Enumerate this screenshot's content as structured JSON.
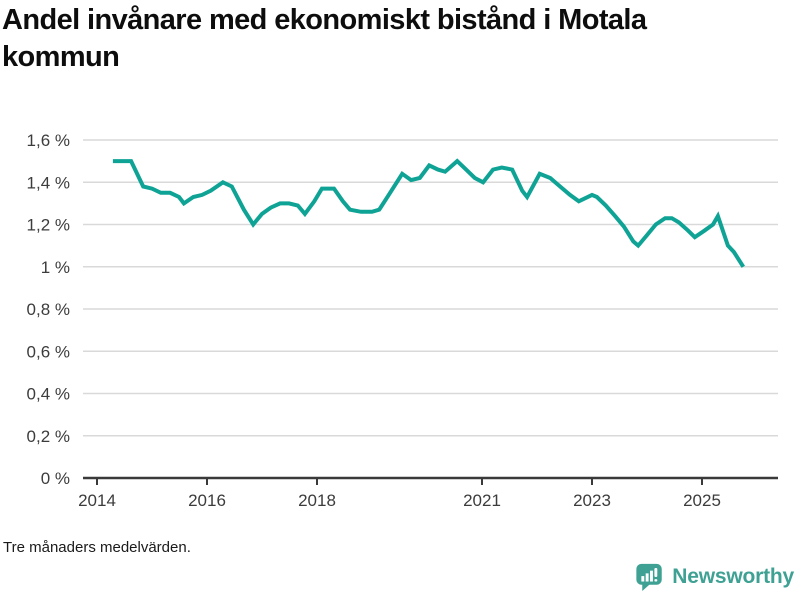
{
  "title": "Andel invånare med ekonomiskt bistånd i Motala kommun",
  "footnote": "Tre månaders medelvärden.",
  "logo": {
    "text": "Newsworthy",
    "color": "#3fa193",
    "icon": "speech-bubble-with-bar-chart-and-exclamation"
  },
  "chart_data": {
    "type": "line",
    "title": "Andel invånare med ekonomiskt bistånd i Motala kommun",
    "xlabel": "",
    "ylabel": "",
    "unit": "%",
    "grid": true,
    "legend_position": "none",
    "line_color": "#0fa396",
    "grid_color": "#d9d9d9",
    "axis_color": "#3a3a3a",
    "label_color": "#3c3c3c",
    "ylim": [
      0,
      1.6
    ],
    "xlim": [
      2013.75,
      2026.38
    ],
    "y_ticks": [
      {
        "value": 1.6,
        "label": "1,6 %"
      },
      {
        "value": 1.4,
        "label": "1,4 %"
      },
      {
        "value": 1.2,
        "label": "1,2 %"
      },
      {
        "value": 1.0,
        "label": "1 %"
      },
      {
        "value": 0.8,
        "label": "0,8 %"
      },
      {
        "value": 0.6,
        "label": "0,6 %"
      },
      {
        "value": 0.4,
        "label": "0,4 %"
      },
      {
        "value": 0.2,
        "label": "0,2 %"
      },
      {
        "value": 0.0,
        "label": "0 %"
      }
    ],
    "x_ticks": [
      {
        "year": 2014,
        "label": "2014"
      },
      {
        "year": 2016,
        "label": "2016"
      },
      {
        "year": 2018,
        "label": "2018"
      },
      {
        "year": 2021,
        "label": "2021"
      },
      {
        "year": 2023,
        "label": "2023"
      },
      {
        "year": 2025,
        "label": "2025"
      }
    ],
    "points_format": "[decimal_year, percent]",
    "points": [
      [
        2014.29,
        1.5
      ],
      [
        2014.45,
        1.5
      ],
      [
        2014.62,
        1.5
      ],
      [
        2014.84,
        1.38
      ],
      [
        2015.0,
        1.37
      ],
      [
        2015.16,
        1.35
      ],
      [
        2015.33,
        1.35
      ],
      [
        2015.49,
        1.33
      ],
      [
        2015.58,
        1.3
      ],
      [
        2015.75,
        1.33
      ],
      [
        2015.91,
        1.34
      ],
      [
        2016.07,
        1.36
      ],
      [
        2016.29,
        1.4
      ],
      [
        2016.45,
        1.38
      ],
      [
        2016.67,
        1.27
      ],
      [
        2016.84,
        1.2
      ],
      [
        2017.0,
        1.25
      ],
      [
        2017.16,
        1.28
      ],
      [
        2017.33,
        1.3
      ],
      [
        2017.49,
        1.3
      ],
      [
        2017.65,
        1.29
      ],
      [
        2017.78,
        1.25
      ],
      [
        2017.95,
        1.31
      ],
      [
        2018.09,
        1.37
      ],
      [
        2018.31,
        1.37
      ],
      [
        2018.47,
        1.31
      ],
      [
        2018.6,
        1.27
      ],
      [
        2018.8,
        1.26
      ],
      [
        2019.0,
        1.26
      ],
      [
        2019.13,
        1.27
      ],
      [
        2019.33,
        1.35
      ],
      [
        2019.55,
        1.44
      ],
      [
        2019.71,
        1.41
      ],
      [
        2019.87,
        1.42
      ],
      [
        2020.04,
        1.48
      ],
      [
        2020.2,
        1.46
      ],
      [
        2020.33,
        1.45
      ],
      [
        2020.55,
        1.5
      ],
      [
        2020.71,
        1.46
      ],
      [
        2020.87,
        1.42
      ],
      [
        2021.02,
        1.4
      ],
      [
        2021.2,
        1.46
      ],
      [
        2021.36,
        1.47
      ],
      [
        2021.55,
        1.46
      ],
      [
        2021.73,
        1.36
      ],
      [
        2021.82,
        1.33
      ],
      [
        2022.05,
        1.44
      ],
      [
        2022.24,
        1.42
      ],
      [
        2022.42,
        1.38
      ],
      [
        2022.6,
        1.34
      ],
      [
        2022.76,
        1.31
      ],
      [
        2023.0,
        1.34
      ],
      [
        2023.09,
        1.33
      ],
      [
        2023.25,
        1.29
      ],
      [
        2023.42,
        1.24
      ],
      [
        2023.58,
        1.19
      ],
      [
        2023.75,
        1.12
      ],
      [
        2023.84,
        1.1
      ],
      [
        2024.0,
        1.15
      ],
      [
        2024.16,
        1.2
      ],
      [
        2024.33,
        1.23
      ],
      [
        2024.45,
        1.23
      ],
      [
        2024.58,
        1.21
      ],
      [
        2024.75,
        1.17
      ],
      [
        2024.87,
        1.14
      ],
      [
        2025.04,
        1.17
      ],
      [
        2025.2,
        1.2
      ],
      [
        2025.29,
        1.24
      ],
      [
        2025.47,
        1.1
      ],
      [
        2025.58,
        1.07
      ],
      [
        2025.75,
        1.0
      ]
    ]
  }
}
